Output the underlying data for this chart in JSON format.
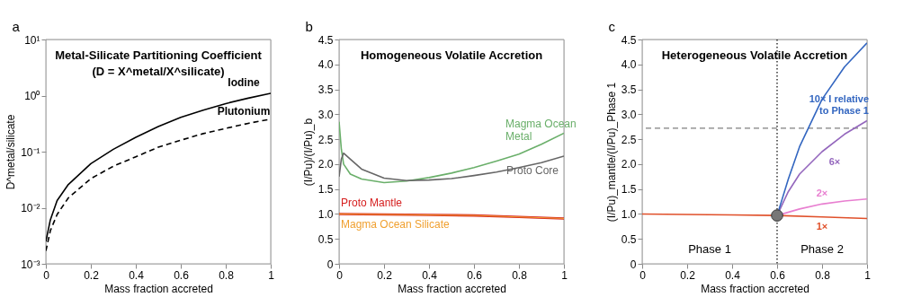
{
  "chart_data": [
    {
      "type": "line",
      "title": "Metal-Silicate Partitioning Coefficient",
      "subtitle": "(D = X^metal/X^silicate)",
      "xlabel": "Mass fraction accreted",
      "ylabel": "D^metal/silicate",
      "annotations": [
        "a"
      ],
      "log": "y",
      "grid": false,
      "legend": false,
      "xlim": [
        0,
        1
      ],
      "xticks": [
        0,
        0.2,
        0.4,
        0.6,
        0.8,
        1
      ],
      "ylim": [
        0.001,
        10
      ],
      "yticks": [
        {
          "value": 0.001,
          "label": "10⁻³"
        },
        {
          "value": 0.01,
          "label": "10⁻²"
        },
        {
          "value": 0.1,
          "label": "10⁻¹"
        },
        {
          "value": 1,
          "label": "10⁰"
        },
        {
          "value": 10,
          "label": "10¹"
        }
      ],
      "series": [
        {
          "name": "Iodine",
          "color": "#000000",
          "line_style": "solid",
          "x": [
            0,
            0.02,
            0.05,
            0.1,
            0.2,
            0.3,
            0.4,
            0.5,
            0.6,
            0.7,
            0.8,
            0.9,
            1
          ],
          "values": [
            0.0025,
            0.0061,
            0.0134,
            0.026,
            0.061,
            0.11,
            0.18,
            0.28,
            0.41,
            0.55,
            0.72,
            0.9,
            1.1
          ]
        },
        {
          "name": "Plutonium",
          "color": "#000000",
          "line_style": "dashed",
          "x": [
            0,
            0.02,
            0.05,
            0.1,
            0.2,
            0.3,
            0.4,
            0.5,
            0.6,
            0.7,
            0.8,
            0.9,
            1
          ],
          "values": [
            0.0017,
            0.0039,
            0.0076,
            0.015,
            0.033,
            0.055,
            0.081,
            0.12,
            0.16,
            0.21,
            0.26,
            0.32,
            0.38
          ]
        }
      ]
    },
    {
      "type": "line",
      "title": "Homogeneous Volatile Accretion",
      "xlabel": "Mass fraction accreted",
      "ylabel": "(I/Pu)/(I/Pu)_b",
      "annotations": [
        "b"
      ],
      "grid": false,
      "legend": false,
      "xlim": [
        0,
        1
      ],
      "xticks": [
        0,
        0.2,
        0.4,
        0.6,
        0.8,
        1
      ],
      "ylim": [
        0,
        4.5
      ],
      "yticks": [
        0,
        0.5,
        {
          "value": 1,
          "label": "1.0"
        },
        1.5,
        {
          "value": 2,
          "label": "2.0"
        },
        2.5,
        {
          "value": 3,
          "label": "3.0"
        },
        3.5,
        {
          "value": 4,
          "label": "4.0"
        },
        4.5
      ],
      "series": [
        {
          "name": "Magma Ocean Metal",
          "color": "#6aaf6a",
          "line_style": "solid",
          "x": [
            0,
            0.01,
            0.02,
            0.05,
            0.1,
            0.2,
            0.3,
            0.4,
            0.5,
            0.6,
            0.7,
            0.8,
            0.9,
            1
          ],
          "values": [
            2.85,
            2.3,
            2.0,
            1.8,
            1.7,
            1.63,
            1.66,
            1.73,
            1.82,
            1.93,
            2.06,
            2.2,
            2.4,
            2.62
          ]
        },
        {
          "name": "Proto Core",
          "color": "#666666",
          "line_style": "solid",
          "x": [
            0,
            0.01,
            0.02,
            0.05,
            0.1,
            0.2,
            0.3,
            0.4,
            0.5,
            0.6,
            0.7,
            0.8,
            0.9,
            1
          ],
          "values": [
            1.75,
            2.1,
            2.22,
            2.1,
            1.9,
            1.72,
            1.67,
            1.68,
            1.71,
            1.77,
            1.84,
            1.93,
            2.03,
            2.16
          ]
        },
        {
          "name": "Proto Mantle",
          "color": "#d62020",
          "line_style": "solid",
          "x": [
            0,
            0.2,
            0.4,
            0.6,
            0.8,
            1
          ],
          "values": [
            1.0,
            0.99,
            0.98,
            0.97,
            0.94,
            0.91
          ]
        },
        {
          "name": "Magma Ocean Silicate",
          "color": "#f0a030",
          "line_style": "solid",
          "x": [
            0,
            0.2,
            0.4,
            0.6,
            0.8,
            1
          ],
          "values": [
            1.0,
            0.99,
            0.98,
            0.97,
            0.94,
            0.91
          ]
        }
      ]
    },
    {
      "type": "line",
      "title": "Heterogeneous Volatile Accretion",
      "xlabel": "Mass fraction accreted",
      "ylabel": "(I/Pu)_mantle/(I/Pu)_Phase 1",
      "grid": false,
      "legend": false,
      "annotations": [
        "c",
        "Phase 1",
        "Phase 2"
      ],
      "xlim": [
        0,
        1
      ],
      "xticks": [
        0,
        0.2,
        0.4,
        0.6,
        0.8,
        1
      ],
      "ylim": [
        0,
        4.5
      ],
      "yticks": [
        0,
        0.5,
        {
          "value": 1,
          "label": "1.0"
        },
        1.5,
        {
          "value": 2,
          "label": "2.0"
        },
        2.5,
        {
          "value": 3,
          "label": "3.0"
        },
        3.5,
        {
          "value": 4,
          "label": "4.0"
        },
        4.5
      ],
      "ref_lines": [
        {
          "axis": "x",
          "value": 0.6,
          "color": "#000000",
          "line_style": "dotted"
        },
        {
          "axis": "y",
          "value": 2.72,
          "color": "#808080",
          "line_style": "dashed"
        }
      ],
      "series": [
        {
          "name": "1×",
          "color": "#e0502a",
          "line_style": "solid",
          "x": [
            0,
            0.2,
            0.4,
            0.6,
            0.8,
            1
          ],
          "values": [
            1.0,
            0.99,
            0.98,
            0.97,
            0.94,
            0.91
          ]
        },
        {
          "name": "2×",
          "color": "#e87fd0",
          "line_style": "solid",
          "x": [
            0.6,
            0.7,
            0.8,
            0.9,
            1
          ],
          "values": [
            0.97,
            1.1,
            1.2,
            1.26,
            1.3
          ]
        },
        {
          "name": "6×",
          "color": "#9467bd",
          "line_style": "solid",
          "x": [
            0.6,
            0.65,
            0.7,
            0.8,
            0.9,
            1
          ],
          "values": [
            0.97,
            1.45,
            1.8,
            2.25,
            2.6,
            2.87
          ]
        },
        {
          "name": "10× I relative to Phase 1",
          "color": "#3366c0",
          "line_style": "solid",
          "x": [
            0.6,
            0.65,
            0.7,
            0.8,
            0.9,
            1
          ],
          "values": [
            0.97,
            1.7,
            2.35,
            3.3,
            3.95,
            4.43
          ]
        },
        {
          "type": "scatter",
          "marker": "circle",
          "color": "#777777",
          "x": [
            0.6
          ],
          "values": [
            0.97
          ]
        }
      ]
    }
  ]
}
